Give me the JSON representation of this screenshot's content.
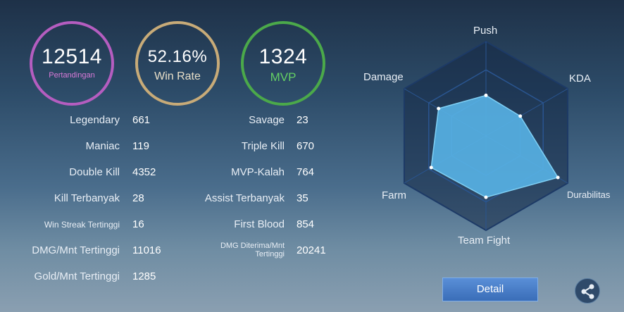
{
  "summary": {
    "matches": {
      "value": "12514",
      "label": "Pertandingan",
      "color": "#b55dc0"
    },
    "win_rate": {
      "value": "52.16%",
      "label": "Win Rate",
      "color": "#c8ab78"
    },
    "mvp": {
      "value": "1324",
      "label": "MVP",
      "color": "#4ba94a"
    }
  },
  "stats_left": [
    {
      "label": "Legendary",
      "value": "661"
    },
    {
      "label": "Maniac",
      "value": "119"
    },
    {
      "label": "Double Kill",
      "value": "4352"
    },
    {
      "label": "Kill Terbanyak",
      "value": "28"
    },
    {
      "label": "Win Streak Tertinggi",
      "value": "16"
    },
    {
      "label": "DMG/Mnt Tertinggi",
      "value": "11016"
    },
    {
      "label": "Gold/Mnt Tertinggi",
      "value": "1285"
    }
  ],
  "stats_right": [
    {
      "label": "Savage",
      "value": "23"
    },
    {
      "label": "Triple Kill",
      "value": "670"
    },
    {
      "label": "MVP-Kalah",
      "value": "764"
    },
    {
      "label": "Assist Terbanyak",
      "value": "35"
    },
    {
      "label": "First Blood",
      "value": "854"
    },
    {
      "label_line1": "DMG Diterima/Mnt",
      "label_line2": "Tertinggi",
      "value": "20241"
    }
  ],
  "radar": {
    "axes": [
      "Push",
      "KDA",
      "Durabilitas",
      "Team Fight",
      "Farm",
      "Damage"
    ],
    "levels": [
      0.43,
      0.42,
      0.88,
      0.65,
      0.67,
      0.58
    ],
    "fill_color": "#58b3e6"
  },
  "buttons": {
    "detail": "Detail"
  },
  "icons": {
    "share": "share-icon"
  }
}
